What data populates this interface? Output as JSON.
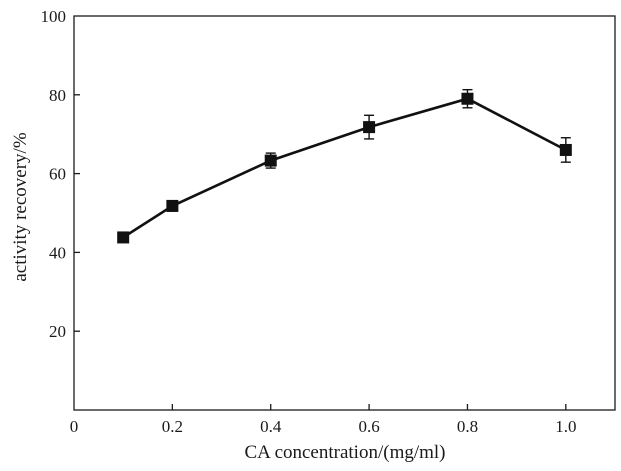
{
  "chart_data": {
    "type": "line",
    "xlabel": "CA concentration/(mg/ml)",
    "ylabel": "activity recovery/%",
    "xlim": [
      0,
      1.1
    ],
    "ylim": [
      0,
      100
    ],
    "x_ticks": [
      0,
      0.2,
      0.4,
      0.6,
      0.8,
      1.0
    ],
    "x_tick_labels": [
      "0",
      "0.2",
      "0.4",
      "0.6",
      "0.8",
      "1.0"
    ],
    "y_ticks": [
      20,
      40,
      60,
      80,
      100
    ],
    "y_tick_labels": [
      "20",
      "40",
      "60",
      "80",
      "100"
    ],
    "grid": false,
    "marker": "square",
    "series": [
      {
        "x": [
          0.1,
          0.2,
          0.4,
          0.6,
          0.8,
          1.0
        ],
        "y": [
          43.8,
          51.8,
          63.3,
          71.8,
          79.0,
          66.0
        ],
        "error": [
          0.9,
          1.3,
          1.9,
          3.0,
          2.3,
          3.1
        ],
        "color": "#111111"
      }
    ]
  }
}
